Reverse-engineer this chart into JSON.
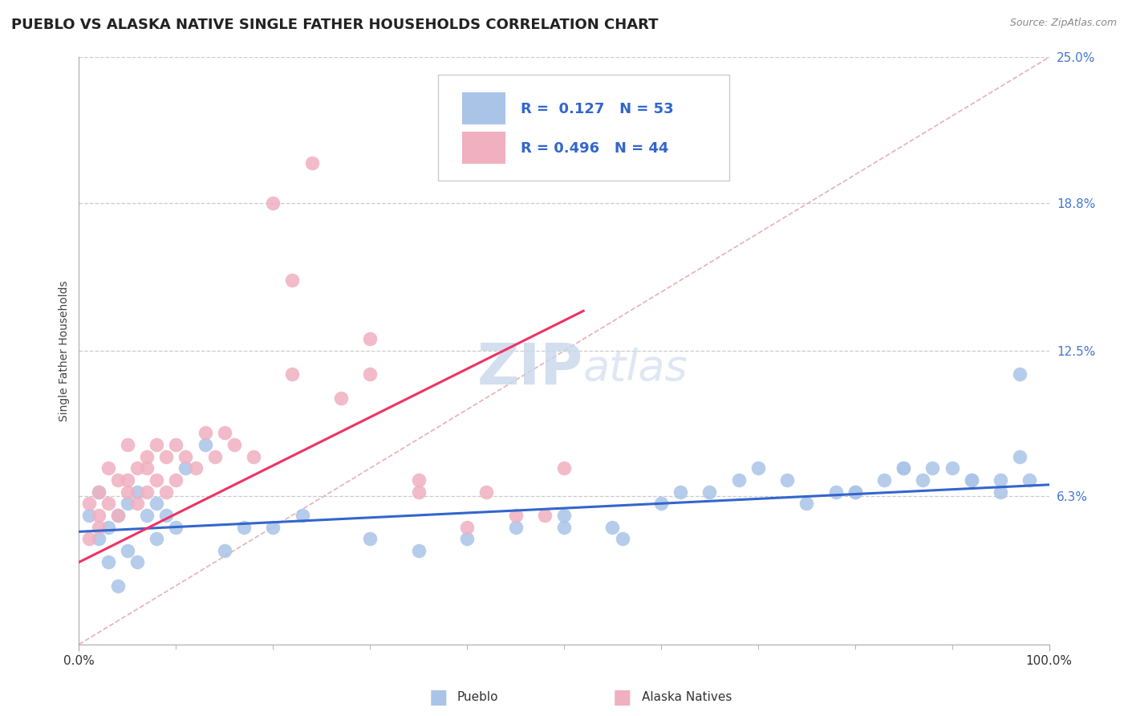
{
  "title": "PUEBLO VS ALASKA NATIVE SINGLE FATHER HOUSEHOLDS CORRELATION CHART",
  "source_text": "Source: ZipAtlas.com",
  "ylabel": "Single Father Households",
  "watermark_zip": "ZIP",
  "watermark_atlas": "atlas",
  "legend_r1": "R =  0.127",
  "legend_n1": "N = 53",
  "legend_r2": "R = 0.496",
  "legend_n2": "N = 44",
  "xlim": [
    0,
    100
  ],
  "ylim": [
    0,
    25
  ],
  "yticks": [
    0,
    6.3,
    12.5,
    18.8,
    25.0
  ],
  "ytick_labels": [
    "",
    "6.3%",
    "12.5%",
    "18.8%",
    "25.0%"
  ],
  "xtick_labels": [
    "0.0%",
    "100.0%"
  ],
  "blue_color": "#aac4e8",
  "pink_color": "#f0b0c0",
  "blue_line_color": "#3366cc",
  "pink_line_color": "#ee3366",
  "diag_color": "#e8b0b8",
  "grid_color": "#cccccc",
  "background_color": "#ffffff",
  "blue_scatter_x": [
    1,
    2,
    2,
    3,
    3,
    4,
    4,
    5,
    5,
    6,
    6,
    7,
    8,
    8,
    9,
    10,
    11,
    13,
    15,
    17,
    20,
    23,
    30,
    35,
    40,
    45,
    50,
    56,
    60,
    65,
    70,
    75,
    78,
    80,
    83,
    85,
    87,
    90,
    92,
    95,
    97,
    55,
    62,
    68,
    73,
    80,
    85,
    88,
    92,
    95,
    97,
    98,
    50
  ],
  "blue_scatter_y": [
    5.5,
    6.5,
    4.5,
    5.0,
    3.5,
    5.5,
    2.5,
    6.0,
    4.0,
    6.5,
    3.5,
    5.5,
    6.0,
    4.5,
    5.5,
    5.0,
    7.5,
    8.5,
    4.0,
    5.0,
    5.0,
    5.5,
    4.5,
    4.0,
    4.5,
    5.0,
    5.5,
    4.5,
    6.0,
    6.5,
    7.5,
    6.0,
    6.5,
    6.5,
    7.0,
    7.5,
    7.0,
    7.5,
    7.0,
    7.0,
    11.5,
    5.0,
    6.5,
    7.0,
    7.0,
    6.5,
    7.5,
    7.5,
    7.0,
    6.5,
    8.0,
    7.0,
    5.0
  ],
  "pink_scatter_x": [
    1,
    1,
    2,
    2,
    2,
    3,
    3,
    4,
    4,
    5,
    5,
    5,
    6,
    6,
    7,
    7,
    7,
    8,
    8,
    9,
    9,
    10,
    10,
    11,
    12,
    13,
    14,
    15,
    16,
    18,
    20,
    22,
    24,
    27,
    30,
    35,
    40,
    42,
    45,
    48,
    50,
    22,
    30,
    35
  ],
  "pink_scatter_y": [
    4.5,
    6.0,
    6.5,
    5.5,
    5.0,
    7.5,
    6.0,
    5.5,
    7.0,
    6.5,
    8.5,
    7.0,
    6.0,
    7.5,
    7.5,
    6.5,
    8.0,
    7.0,
    8.5,
    6.5,
    8.0,
    7.0,
    8.5,
    8.0,
    7.5,
    9.0,
    8.0,
    9.0,
    8.5,
    8.0,
    18.8,
    15.5,
    20.5,
    10.5,
    13.0,
    6.5,
    5.0,
    6.5,
    5.5,
    5.5,
    7.5,
    11.5,
    11.5,
    7.0
  ],
  "blue_trend_x": [
    0,
    100
  ],
  "blue_trend_y": [
    4.8,
    6.8
  ],
  "pink_trend_x": [
    0,
    52
  ],
  "pink_trend_y": [
    3.5,
    14.2
  ],
  "title_fontsize": 13,
  "axis_label_fontsize": 10,
  "tick_fontsize": 11,
  "watermark_fontsize": 52,
  "legend_fontsize": 13
}
